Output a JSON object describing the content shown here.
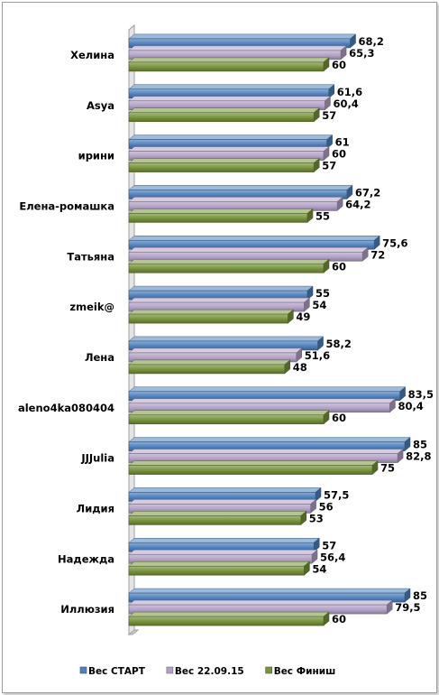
{
  "chart_data": {
    "type": "bar",
    "orientation": "horizontal",
    "title": "",
    "xlabel": "",
    "ylabel": "",
    "xlim": [
      0,
      90
    ],
    "grid": false,
    "legend_position": "bottom",
    "categories": [
      "Хелина",
      "Asya",
      "ирини",
      "Елена-ромашка",
      "Татьяна",
      "zmeik@",
      "Лена",
      "aleno4ka080404",
      "JJJulia",
      "Лидия",
      "Надежда",
      "Иллюзия"
    ],
    "series": [
      {
        "name": "Вес СТАРТ",
        "color": "#4f81bd",
        "values": [
          68.2,
          61.6,
          61,
          67.2,
          75.6,
          55,
          58.2,
          83.5,
          85,
          57.5,
          57,
          85
        ],
        "labels": [
          "68,2",
          "61,6",
          "61",
          "67,2",
          "75,6",
          "55",
          "58,2",
          "83,5",
          "85",
          "57,5",
          "57",
          "85"
        ]
      },
      {
        "name": "Вес 22.09.15",
        "color": "#b3a2c7",
        "values": [
          65.3,
          60.4,
          60,
          64.2,
          72,
          54,
          51.6,
          80.4,
          82.8,
          56,
          56.4,
          79.5
        ],
        "labels": [
          "65,3",
          "60,4",
          "60",
          "64,2",
          "72",
          "54",
          "51,6",
          "80,4",
          "82,8",
          "56",
          "56,4",
          "79,5"
        ]
      },
      {
        "name": "Вес Финиш",
        "color": "#77933c",
        "values": [
          60,
          57,
          57,
          55,
          60,
          49,
          48,
          60,
          75,
          53,
          54,
          60
        ],
        "labels": [
          "60",
          "57",
          "57",
          "55",
          "60",
          "49",
          "48",
          "60",
          "75",
          "53",
          "54",
          "60"
        ]
      }
    ]
  }
}
